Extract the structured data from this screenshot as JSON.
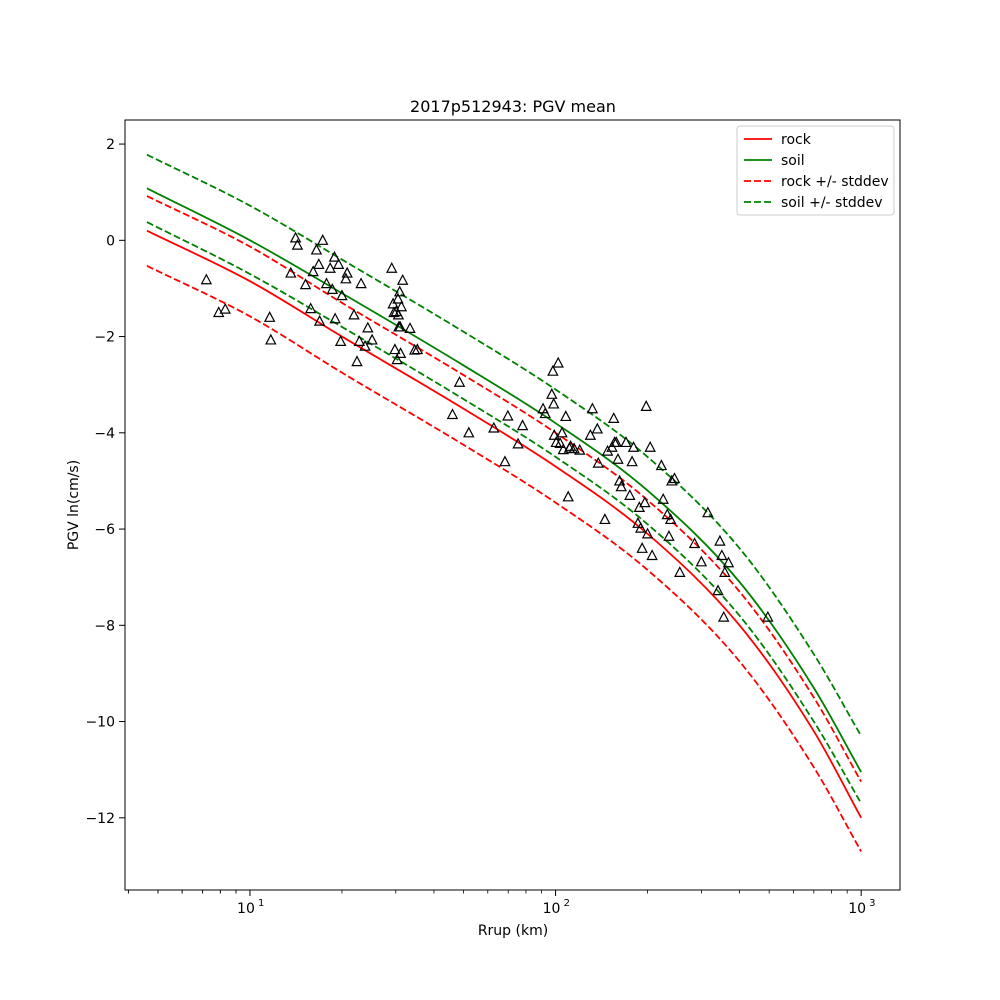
{
  "chart_data": {
    "type": "line",
    "title": "2017p512943: PGV mean",
    "xlabel": "Rrup (km)",
    "ylabel": "PGV ln(cm/s)",
    "xscale": "log",
    "xlim": [
      3.9,
      1340
    ],
    "ylim": [
      -13.5,
      2.5
    ],
    "x_ticks": [
      {
        "value": 10,
        "label": "10",
        "exp": "1"
      },
      {
        "value": 100,
        "label": "10",
        "exp": "2"
      },
      {
        "value": 1000,
        "label": "10",
        "exp": "3"
      }
    ],
    "y_ticks": [
      {
        "value": 2,
        "label": "2"
      },
      {
        "value": 0,
        "label": "0"
      },
      {
        "value": -2,
        "label": "−2"
      },
      {
        "value": -4,
        "label": "−4"
      },
      {
        "value": -6,
        "label": "−6"
      },
      {
        "value": -8,
        "label": "−8"
      },
      {
        "value": -10,
        "label": "−10"
      },
      {
        "value": -12,
        "label": "−12"
      }
    ],
    "grid": false,
    "legend": "top-right",
    "series": [
      {
        "name": "rock",
        "color": "#ff0000",
        "dash": "solid",
        "x": [
          4.6,
          10,
          20,
          50,
          100,
          200,
          400,
          700,
          1000
        ],
        "y": [
          0.2,
          -0.85,
          -2.0,
          -3.5,
          -4.7,
          -6.1,
          -8.0,
          -10.2,
          -12.0
        ]
      },
      {
        "name": "soil",
        "color": "#008000",
        "dash": "solid",
        "x": [
          4.6,
          10,
          20,
          50,
          100,
          200,
          400,
          700,
          1000
        ],
        "y": [
          1.08,
          0.0,
          -1.1,
          -2.6,
          -3.8,
          -5.2,
          -7.1,
          -9.3,
          -11.05
        ]
      },
      {
        "name": "rock +/- stddev",
        "color": "#ff0000",
        "dash": "dashed",
        "x": [
          4.6,
          10,
          20,
          50,
          100,
          200,
          400,
          700,
          1000
        ],
        "y": [
          0.92,
          -0.13,
          -1.3,
          -2.8,
          -4.0,
          -5.4,
          -7.3,
          -9.5,
          -11.25
        ]
      },
      {
        "name": "",
        "color": "#ff0000",
        "dash": "dashed",
        "x": [
          4.6,
          10,
          20,
          50,
          100,
          200,
          400,
          700,
          1000
        ],
        "y": [
          -0.53,
          -1.58,
          -2.75,
          -4.25,
          -5.45,
          -6.85,
          -8.75,
          -10.95,
          -12.7
        ]
      },
      {
        "name": "soil +/- stddev",
        "color": "#008000",
        "dash": "dashed",
        "x": [
          4.6,
          10,
          20,
          50,
          100,
          200,
          400,
          700,
          1000
        ],
        "y": [
          1.78,
          0.72,
          -0.4,
          -1.9,
          -3.1,
          -4.5,
          -6.4,
          -8.6,
          -10.3
        ]
      },
      {
        "name": "",
        "color": "#008000",
        "dash": "dashed",
        "x": [
          4.6,
          10,
          20,
          50,
          100,
          200,
          400,
          700,
          1000
        ],
        "y": [
          0.38,
          -0.7,
          -1.8,
          -3.3,
          -4.5,
          -5.9,
          -7.8,
          -10.0,
          -11.7
        ]
      }
    ],
    "observations": {
      "marker": "open-triangle",
      "color": "#000000",
      "points": [
        [
          7.2,
          -0.82
        ],
        [
          7.9,
          -1.5
        ],
        [
          8.3,
          -1.43
        ],
        [
          11.6,
          -1.6
        ],
        [
          11.7,
          -2.07
        ],
        [
          13.6,
          -0.68
        ],
        [
          14.1,
          0.05
        ],
        [
          14.3,
          -0.1
        ],
        [
          15.2,
          -0.92
        ],
        [
          15.8,
          -1.42
        ],
        [
          16.1,
          -0.65
        ],
        [
          16.5,
          -0.2
        ],
        [
          16.8,
          -0.5
        ],
        [
          16.9,
          -1.68
        ],
        [
          17.3,
          0.0
        ],
        [
          17.8,
          -0.9
        ],
        [
          18.3,
          -0.58
        ],
        [
          18.6,
          -1.02
        ],
        [
          18.9,
          -0.35
        ],
        [
          19.0,
          -1.63
        ],
        [
          19.5,
          -0.5
        ],
        [
          19.8,
          -2.1
        ],
        [
          20.0,
          -1.15
        ],
        [
          20.6,
          -0.8
        ],
        [
          20.8,
          -0.68
        ],
        [
          21.9,
          -1.55
        ],
        [
          22.4,
          -2.52
        ],
        [
          22.8,
          -2.1
        ],
        [
          23.1,
          -0.9
        ],
        [
          23.8,
          -2.2
        ],
        [
          24.3,
          -1.82
        ],
        [
          25.1,
          -2.07
        ],
        [
          29.1,
          -0.58
        ],
        [
          29.4,
          -1.32
        ],
        [
          29.6,
          -1.5
        ],
        [
          29.8,
          -2.27
        ],
        [
          30.1,
          -1.48
        ],
        [
          30.3,
          -2.48
        ],
        [
          30.5,
          -1.22
        ],
        [
          30.6,
          -1.55
        ],
        [
          30.7,
          -1.8
        ],
        [
          30.9,
          -1.07
        ],
        [
          31.0,
          -1.8
        ],
        [
          31.1,
          -2.35
        ],
        [
          31.3,
          -1.38
        ],
        [
          31.6,
          -0.83
        ],
        [
          33.4,
          -1.83
        ],
        [
          34.6,
          -2.28
        ],
        [
          35.3,
          -2.27
        ],
        [
          46.0,
          -3.62
        ],
        [
          48.5,
          -2.95
        ],
        [
          52.0,
          -4.0
        ],
        [
          62.8,
          -3.9
        ],
        [
          68.3,
          -4.6
        ],
        [
          69.8,
          -3.65
        ],
        [
          75.4,
          -4.23
        ],
        [
          78.0,
          -3.85
        ],
        [
          91.0,
          -3.5
        ],
        [
          92.5,
          -3.6
        ],
        [
          97.2,
          -3.2
        ],
        [
          98.0,
          -2.72
        ],
        [
          98.6,
          -3.4
        ],
        [
          99.0,
          -4.05
        ],
        [
          100.5,
          -4.2
        ],
        [
          102.0,
          -2.55
        ],
        [
          103.5,
          -4.22
        ],
        [
          105.0,
          -4.0
        ],
        [
          106.0,
          -4.35
        ],
        [
          108.0,
          -3.66
        ],
        [
          110.0,
          -5.33
        ],
        [
          111.0,
          -4.32
        ],
        [
          112.0,
          -4.28
        ],
        [
          115.0,
          -4.33
        ],
        [
          120.0,
          -4.36
        ],
        [
          130.0,
          -4.05
        ],
        [
          132.0,
          -3.5
        ],
        [
          137.0,
          -3.92
        ],
        [
          138.0,
          -4.63
        ],
        [
          145.0,
          -5.8
        ],
        [
          148.0,
          -4.38
        ],
        [
          153.0,
          -4.3
        ],
        [
          155.0,
          -3.7
        ],
        [
          156.0,
          -4.2
        ],
        [
          158.0,
          -4.2
        ],
        [
          160.0,
          -4.55
        ],
        [
          162.0,
          -5.0
        ],
        [
          164.0,
          -5.12
        ],
        [
          170.0,
          -4.2
        ],
        [
          175.0,
          -5.3
        ],
        [
          178.0,
          -4.6
        ],
        [
          180.0,
          -4.3
        ],
        [
          186.0,
          -5.88
        ],
        [
          188.0,
          -5.55
        ],
        [
          190.0,
          -5.98
        ],
        [
          192.0,
          -6.4
        ],
        [
          196.0,
          -5.45
        ],
        [
          198.0,
          -3.45
        ],
        [
          200.0,
          -6.1
        ],
        [
          204.0,
          -4.3
        ],
        [
          207.0,
          -6.55
        ],
        [
          222.0,
          -4.68
        ],
        [
          225.0,
          -5.38
        ],
        [
          232.0,
          -5.7
        ],
        [
          235.0,
          -6.15
        ],
        [
          238.0,
          -5.8
        ],
        [
          240.0,
          -5.0
        ],
        [
          245.0,
          -4.95
        ],
        [
          255.0,
          -6.9
        ],
        [
          285.0,
          -6.3
        ],
        [
          300.0,
          -6.68
        ],
        [
          315.0,
          -5.66
        ],
        [
          340.0,
          -7.28
        ],
        [
          345.0,
          -6.25
        ],
        [
          350.0,
          -6.55
        ],
        [
          355.0,
          -7.83
        ],
        [
          358.0,
          -6.9
        ],
        [
          368.0,
          -6.7
        ],
        [
          495.0,
          -7.83
        ]
      ]
    }
  }
}
